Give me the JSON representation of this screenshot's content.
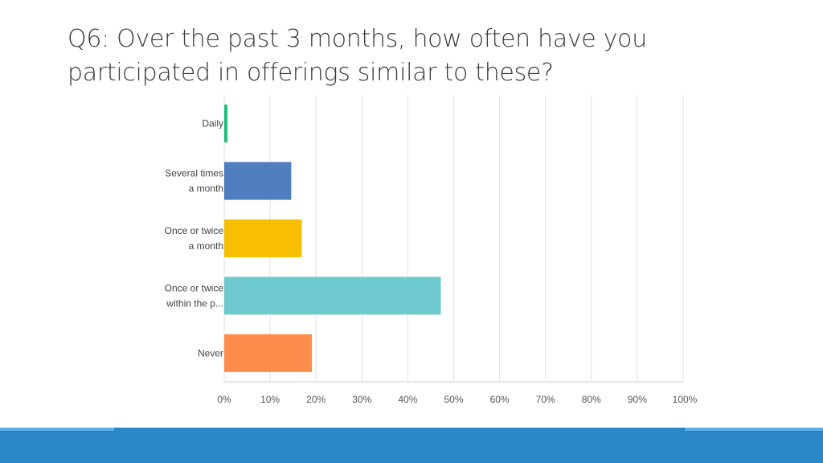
{
  "slide": {
    "title_line1": "Q6: Over the past 3 months, how often have you",
    "title_line2": "participated in offerings similar to these?"
  },
  "chart_data": {
    "type": "bar",
    "orientation": "horizontal",
    "title": "",
    "xlabel": "",
    "ylabel": "",
    "xlim": [
      0,
      100
    ],
    "grid": true,
    "x_ticks": [
      "0%",
      "10%",
      "20%",
      "30%",
      "40%",
      "50%",
      "60%",
      "70%",
      "80%",
      "90%",
      "100%"
    ],
    "categories": [
      [
        "Daily"
      ],
      [
        "Several times",
        "a month"
      ],
      [
        "Once or twice",
        "a month"
      ],
      [
        "Once or twice",
        "within the p..."
      ],
      [
        "Never"
      ]
    ],
    "values": [
      0.7,
      14.6,
      16.9,
      47.2,
      19.1
    ],
    "colors": [
      "#20c07a",
      "#4f7fbf",
      "#f7bf00",
      "#6ecacf",
      "#fe8c4d"
    ]
  }
}
